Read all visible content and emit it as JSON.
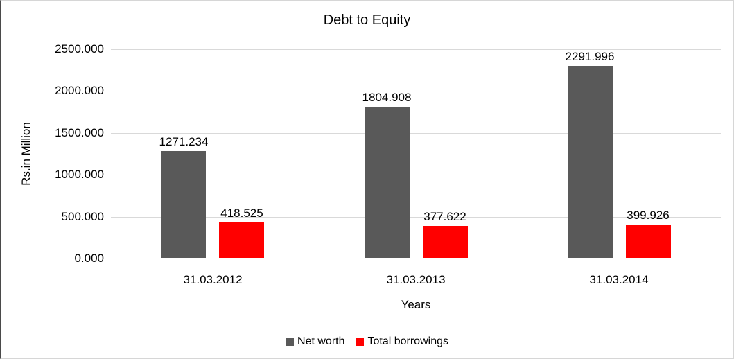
{
  "chart_data": {
    "type": "bar",
    "title": "Debt to Equity",
    "xlabel": "Years",
    "ylabel": "Rs.in Million",
    "categories": [
      "31.03.2012",
      "31.03.2013",
      "31.03.2014"
    ],
    "series": [
      {
        "name": "Net worth",
        "color": "#595959",
        "values": [
          1271.234,
          1804.908,
          2291.996
        ]
      },
      {
        "name": "Total borrowings",
        "color": "#ff0000",
        "values": [
          418.525,
          377.622,
          399.926
        ]
      }
    ],
    "data_labels": [
      [
        "1271.234",
        "1804.908",
        "2291.996"
      ],
      [
        "418.525",
        "377.622",
        "399.926"
      ]
    ],
    "ylim": [
      0,
      2500
    ],
    "yticks": [
      0,
      500,
      1000,
      1500,
      2000,
      2500
    ],
    "ytick_labels": [
      "0.000",
      "500.000",
      "1000.000",
      "1500.000",
      "2000.000",
      "2500.000"
    ],
    "grid": true,
    "legend_position": "bottom",
    "colors": {
      "gridline": "#d9d9d9",
      "axis_line": "#d3d3d3",
      "text": "#000000",
      "background": "#ffffff"
    }
  }
}
